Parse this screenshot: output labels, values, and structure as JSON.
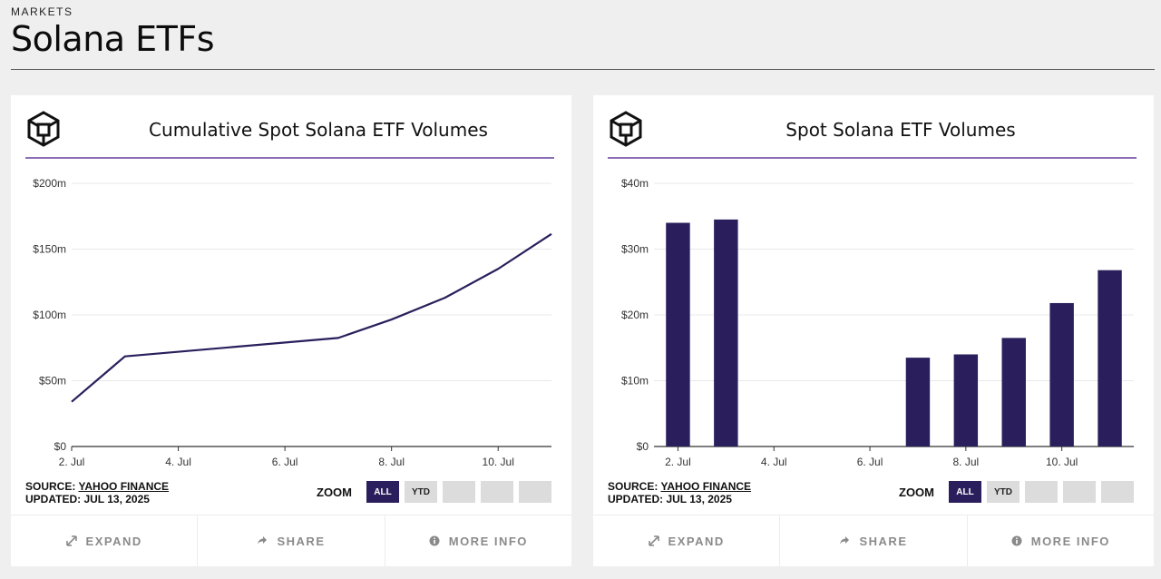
{
  "header": {
    "eyebrow": "MARKETS",
    "title": "Solana ETFs"
  },
  "colors": {
    "series": "#2a1f5c",
    "accent_rule": "#8c6db5",
    "grid": "#e9e9e9"
  },
  "cards": [
    {
      "title": "Cumulative Spot Solana ETF Volumes",
      "source_label": "SOURCE:",
      "source_link": "YAHOO FINANCE",
      "updated": "UPDATED: JUL 13, 2025",
      "zoom": {
        "label": "ZOOM",
        "buttons": [
          "ALL",
          "YTD",
          "",
          "",
          ""
        ],
        "active": "ALL"
      },
      "footer": {
        "expand": "EXPAND",
        "share": "SHARE",
        "more_info": "MORE INFO"
      },
      "icons": {
        "logo": "cube-logo-icon",
        "expand": "expand-icon",
        "share": "share-icon",
        "info": "info-icon"
      }
    },
    {
      "title": "Spot Solana ETF Volumes",
      "source_label": "SOURCE:",
      "source_link": "YAHOO FINANCE",
      "updated": "UPDATED: JUL 13, 2025",
      "zoom": {
        "label": "ZOOM",
        "buttons": [
          "ALL",
          "YTD",
          "",
          "",
          ""
        ],
        "active": "ALL"
      },
      "footer": {
        "expand": "EXPAND",
        "share": "SHARE",
        "more_info": "MORE INFO"
      },
      "icons": {
        "logo": "cube-logo-icon",
        "expand": "expand-icon",
        "share": "share-icon",
        "info": "info-icon"
      }
    }
  ],
  "chart_data": [
    {
      "type": "line",
      "title": "Cumulative Spot Solana ETF Volumes",
      "x": [
        "2025-07-02",
        "2025-07-03",
        "2025-07-07",
        "2025-07-08",
        "2025-07-09",
        "2025-07-10",
        "2025-07-11"
      ],
      "x_ticks": [
        "2. Jul",
        "4. Jul",
        "6. Jul",
        "8. Jul",
        "10. Jul"
      ],
      "y_ticks": [
        "$0",
        "$50m",
        "$100m",
        "$150m",
        "$200m"
      ],
      "ylim": [
        0,
        200
      ],
      "y_unit": "millions USD",
      "series": [
        {
          "values": [
            34,
            68.5,
            82.5,
            96.5,
            113,
            135,
            161.5
          ]
        }
      ],
      "grid": true,
      "legend": "none"
    },
    {
      "type": "bar",
      "title": "Spot Solana ETF Volumes",
      "x": [
        "2025-07-02",
        "2025-07-03",
        "2025-07-07",
        "2025-07-08",
        "2025-07-09",
        "2025-07-10",
        "2025-07-11"
      ],
      "x_ticks": [
        "2. Jul",
        "4. Jul",
        "6. Jul",
        "8. Jul",
        "10. Jul"
      ],
      "y_ticks": [
        "$0",
        "$10m",
        "$20m",
        "$30m",
        "$40m"
      ],
      "ylim": [
        0,
        40
      ],
      "y_unit": "millions USD",
      "series": [
        {
          "values": [
            34,
            34.5,
            13.5,
            14,
            16.5,
            21.8,
            26.8
          ]
        }
      ],
      "grid": true,
      "legend": "none"
    }
  ]
}
